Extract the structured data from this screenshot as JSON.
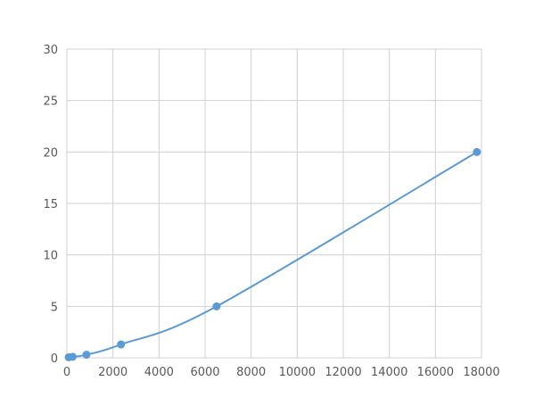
{
  "chart_data": {
    "type": "scatter",
    "title": "",
    "xlabel": "",
    "ylabel": "",
    "xlim": [
      0,
      18000
    ],
    "ylim": [
      0,
      30
    ],
    "xticks": [
      0,
      2000,
      4000,
      6000,
      8000,
      10000,
      12000,
      14000,
      16000,
      18000
    ],
    "yticks": [
      0,
      5,
      10,
      15,
      20,
      25,
      30
    ],
    "grid": true,
    "legend": "none",
    "color": "#5b9bd5",
    "series": [
      {
        "x": [
          80,
          250,
          850,
          2350,
          6500,
          17800
        ],
        "y": [
          0.05,
          0.1,
          0.3,
          1.3,
          5.0,
          20.0
        ]
      }
    ]
  }
}
